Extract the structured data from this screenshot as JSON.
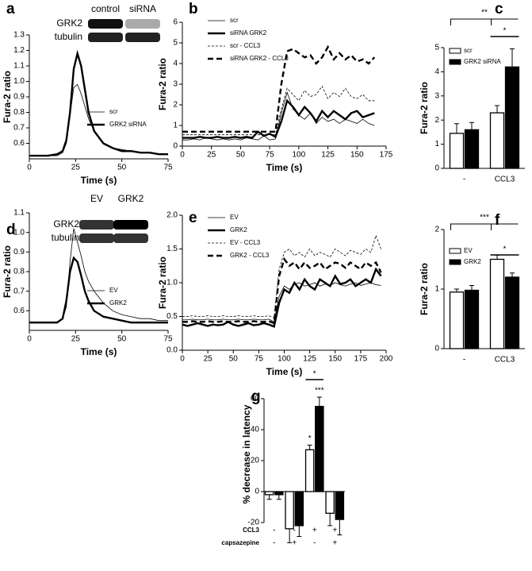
{
  "chart_data": [
    {
      "type": "line",
      "label": "a",
      "xlabel": "Time (s)",
      "ylabel": "Fura-2 ratio",
      "blot": {
        "lanes": [
          "control",
          "siRNA"
        ],
        "rows": [
          "GRK2",
          "tubulin"
        ]
      },
      "x": [
        0,
        5,
        10,
        15,
        18,
        20,
        22,
        24,
        26,
        28,
        30,
        32,
        35,
        40,
        45,
        50,
        55,
        60,
        65,
        70,
        75
      ],
      "xlim": [
        0,
        75
      ],
      "xticks": [
        0,
        25,
        50,
        75
      ],
      "ylim": [
        0.5,
        1.3
      ],
      "yticks": [
        0.6,
        0.7,
        0.8,
        0.9,
        {
          "value": 1,
          "label": "1.0"
        },
        1.1,
        1.2,
        1.3
      ],
      "series": [
        {
          "name": "scr",
          "color": "#000000",
          "style": "thin",
          "dashed": false,
          "values": [
            0.52,
            0.52,
            0.52,
            0.52,
            0.54,
            0.6,
            0.78,
            0.96,
            0.98,
            0.92,
            0.84,
            0.76,
            0.68,
            0.6,
            0.57,
            0.56,
            0.55,
            0.54,
            0.54,
            0.53,
            0.53
          ]
        },
        {
          "name": "GRK2 siRNA",
          "color": "#000000",
          "style": "thick",
          "dashed": false,
          "values": [
            0.52,
            0.52,
            0.52,
            0.53,
            0.55,
            0.62,
            0.8,
            1.08,
            1.18,
            1.1,
            0.95,
            0.8,
            0.68,
            0.6,
            0.57,
            0.55,
            0.55,
            0.54,
            0.54,
            0.53,
            0.53
          ]
        }
      ]
    },
    {
      "type": "line",
      "label": "b",
      "xlabel": "Time (s)",
      "ylabel": "Fura-2 ratio",
      "x": [
        0,
        5,
        10,
        15,
        20,
        25,
        30,
        35,
        40,
        45,
        50,
        55,
        60,
        65,
        70,
        75,
        80,
        85,
        90,
        95,
        100,
        105,
        110,
        115,
        120,
        125,
        130,
        135,
        140,
        145,
        150,
        155,
        160,
        165
      ],
      "xlim": [
        0,
        175
      ],
      "xticks": [
        0,
        25,
        50,
        75,
        100,
        125,
        150,
        175
      ],
      "ylim": [
        0,
        6
      ],
      "yticks": [
        0,
        1,
        2,
        3,
        4,
        5,
        6
      ],
      "series": [
        {
          "name": "scr",
          "color": "#000000",
          "style": "thin",
          "dashed": false,
          "values": [
            0.3,
            0.3,
            0.35,
            0.3,
            0.4,
            0.35,
            0.3,
            0.35,
            0.3,
            0.35,
            0.3,
            0.4,
            0.35,
            0.3,
            0.5,
            0.3,
            0.35,
            1.6,
            2.6,
            1.8,
            1.5,
            1.3,
            1.6,
            1.1,
            1.4,
            1.2,
            1.3,
            1.1,
            1.3,
            1.2,
            1.1,
            1.3,
            1.1,
            1.0
          ]
        },
        {
          "name": "siRNA GRK2",
          "color": "#000000",
          "style": "thick",
          "dashed": false,
          "values": [
            0.4,
            0.4,
            0.4,
            0.45,
            0.4,
            0.4,
            0.45,
            0.4,
            0.4,
            0.45,
            0.4,
            0.45,
            0.4,
            0.7,
            0.5,
            0.6,
            0.45,
            1.2,
            2.2,
            1.9,
            1.5,
            1.9,
            1.6,
            1.2,
            1.7,
            1.4,
            1.7,
            1.5,
            1.3,
            1.6,
            1.7,
            1.4,
            1.5,
            1.6
          ]
        },
        {
          "name": "scr - CCL3",
          "color": "#000000",
          "style": "thin",
          "dashed": true,
          "values": [
            0.55,
            0.55,
            0.55,
            0.55,
            0.55,
            0.55,
            0.55,
            0.55,
            0.55,
            0.55,
            0.55,
            0.55,
            0.55,
            0.55,
            0.55,
            0.55,
            0.55,
            1.8,
            2.8,
            2.5,
            2.2,
            2.7,
            2.4,
            2.5,
            2.9,
            2.3,
            2.6,
            2.4,
            2.8,
            2.4,
            2.3,
            2.5,
            2.2,
            2.2
          ]
        },
        {
          "name": "siRNA GRK2 - CCL3",
          "color": "#000000",
          "style": "thick",
          "dashed": true,
          "values": [
            0.7,
            0.7,
            0.7,
            0.7,
            0.7,
            0.7,
            0.7,
            0.7,
            0.7,
            0.7,
            0.7,
            0.7,
            0.7,
            0.7,
            0.7,
            0.7,
            0.7,
            3.0,
            4.6,
            4.7,
            4.5,
            4.3,
            4.4,
            4.0,
            4.3,
            4.8,
            4.2,
            4.5,
            4.2,
            4.4,
            4.1,
            4.2,
            4.0,
            4.3
          ]
        }
      ]
    },
    {
      "type": "bar",
      "label": "c",
      "ylabel": "Fura-2 ratio",
      "categories": [
        "-",
        "CCL3"
      ],
      "ylim": [
        0,
        5
      ],
      "yticks": [
        0,
        1,
        2,
        3,
        4,
        5
      ],
      "significance": [
        "**",
        "*"
      ],
      "series": [
        {
          "name": "scr",
          "color": "#ffffff",
          "values": [
            1.45,
            2.3
          ],
          "errors": [
            0.4,
            0.3
          ]
        },
        {
          "name": "GRK2 siRNA",
          "color": "#000000",
          "values": [
            1.6,
            4.2
          ],
          "errors": [
            0.3,
            0.75
          ]
        }
      ]
    },
    {
      "type": "line",
      "label": "d",
      "xlabel": "Time (s)",
      "ylabel": "Fura-2 ratio",
      "blot": {
        "lanes": [
          "EV",
          "GRK2"
        ],
        "rows": [
          "GRK2",
          "tubulin"
        ]
      },
      "x": [
        0,
        5,
        10,
        15,
        18,
        20,
        22,
        24,
        26,
        28,
        30,
        32,
        35,
        40,
        45,
        50,
        55,
        60,
        65,
        70,
        75
      ],
      "xlim": [
        0,
        75
      ],
      "xticks": [
        0,
        25,
        50,
        75
      ],
      "ylim": [
        0.5,
        1.1
      ],
      "yticks": [
        0.6,
        0.7,
        0.8,
        0.9,
        {
          "value": 1,
          "label": "1.0"
        },
        1.1
      ],
      "series": [
        {
          "name": "EV",
          "color": "#000000",
          "style": "thin",
          "dashed": false,
          "values": [
            0.54,
            0.54,
            0.54,
            0.54,
            0.56,
            0.62,
            0.85,
            1.02,
            0.95,
            0.88,
            0.8,
            0.75,
            0.7,
            0.64,
            0.6,
            0.58,
            0.57,
            0.56,
            0.56,
            0.55,
            0.55
          ]
        },
        {
          "name": "GRK2",
          "color": "#000000",
          "style": "thick",
          "dashed": false,
          "values": [
            0.54,
            0.54,
            0.54,
            0.54,
            0.56,
            0.65,
            0.8,
            0.87,
            0.85,
            0.78,
            0.7,
            0.65,
            0.6,
            0.57,
            0.56,
            0.55,
            0.54,
            0.54,
            0.54,
            0.54,
            0.54
          ]
        }
      ]
    },
    {
      "type": "line",
      "label": "e",
      "xlabel": "Time (s)",
      "ylabel": "Fura-2 ratio",
      "x": [
        0,
        5,
        10,
        15,
        20,
        25,
        30,
        35,
        40,
        45,
        50,
        55,
        60,
        65,
        70,
        75,
        80,
        85,
        90,
        95,
        100,
        105,
        110,
        115,
        120,
        125,
        130,
        135,
        140,
        145,
        150,
        155,
        160,
        165,
        170,
        175,
        180,
        185,
        190,
        195
      ],
      "xlim": [
        0,
        200
      ],
      "xticks": [
        0,
        25,
        50,
        75,
        100,
        125,
        150,
        175,
        200
      ],
      "ylim": [
        0,
        2
      ],
      "yticks": [
        {
          "value": 0,
          "label": "0.0"
        },
        0.5,
        {
          "value": 1,
          "label": "1.0"
        },
        1.5,
        {
          "value": 2,
          "label": "2.0"
        }
      ],
      "series": [
        {
          "name": "EV",
          "color": "#000000",
          "style": "thin",
          "dashed": false,
          "values": [
            0.45,
            0.45,
            0.46,
            0.45,
            0.45,
            0.46,
            0.45,
            0.45,
            0.46,
            0.45,
            0.45,
            0.46,
            0.45,
            0.45,
            0.46,
            0.45,
            0.45,
            0.46,
            0.42,
            0.8,
            0.95,
            0.9,
            0.98,
            1.0,
            0.95,
            0.97,
            1.0,
            0.95,
            0.98,
            0.96,
            1.0,
            0.97,
            0.95,
            0.98,
            1.0,
            0.96,
            0.98,
            1.0,
            0.97,
            0.96
          ]
        },
        {
          "name": "GRK2",
          "color": "#000000",
          "style": "thick",
          "dashed": false,
          "values": [
            0.38,
            0.36,
            0.38,
            0.4,
            0.38,
            0.36,
            0.38,
            0.37,
            0.38,
            0.42,
            0.38,
            0.36,
            0.38,
            0.4,
            0.37,
            0.38,
            0.4,
            0.38,
            0.35,
            0.7,
            0.9,
            0.85,
            1.0,
            0.9,
            1.05,
            0.95,
            0.9,
            1.05,
            1.0,
            0.95,
            1.1,
            0.98,
            1.0,
            1.05,
            0.95,
            1.0,
            1.05,
            1.0,
            1.2,
            1.1
          ]
        },
        {
          "name": "EV - CCL3",
          "color": "#000000",
          "style": "thin",
          "dashed": true,
          "values": [
            0.5,
            0.5,
            0.51,
            0.5,
            0.5,
            0.51,
            0.5,
            0.5,
            0.51,
            0.5,
            0.5,
            0.51,
            0.5,
            0.5,
            0.51,
            0.5,
            0.5,
            0.51,
            0.48,
            1.2,
            1.45,
            1.5,
            1.4,
            1.45,
            1.38,
            1.5,
            1.4,
            1.45,
            1.42,
            1.38,
            1.5,
            1.45,
            1.4,
            1.48,
            1.45,
            1.42,
            1.5,
            1.45,
            1.7,
            1.5
          ]
        },
        {
          "name": "GRK2 - CCL3",
          "color": "#000000",
          "style": "thick",
          "dashed": true,
          "values": [
            0.42,
            0.42,
            0.43,
            0.42,
            0.42,
            0.43,
            0.42,
            0.42,
            0.43,
            0.42,
            0.42,
            0.43,
            0.42,
            0.42,
            0.43,
            0.42,
            0.42,
            0.43,
            0.4,
            1.1,
            1.35,
            1.25,
            1.3,
            1.2,
            1.3,
            1.22,
            1.25,
            1.3,
            1.2,
            1.25,
            1.3,
            1.28,
            1.22,
            1.3,
            1.25,
            1.2,
            1.3,
            1.25,
            1.3,
            1.15
          ]
        }
      ]
    },
    {
      "type": "bar",
      "label": "f",
      "ylabel": "Fura-2 ratio",
      "categories": [
        "-",
        "CCL3"
      ],
      "ylim": [
        0,
        2
      ],
      "yticks": [
        0,
        1,
        2
      ],
      "significance": [
        "***",
        "*"
      ],
      "series": [
        {
          "name": "EV",
          "color": "#ffffff",
          "values": [
            0.95,
            1.5
          ],
          "errors": [
            0.05,
            0.07
          ]
        },
        {
          "name": "GRK2",
          "color": "#000000",
          "values": [
            0.98,
            1.2
          ],
          "errors": [
            0.08,
            0.07
          ]
        }
      ]
    },
    {
      "type": "bar",
      "label": "g",
      "ylabel": "% decrease in latency",
      "categories": [
        null,
        null,
        null,
        null
      ],
      "ylim": [
        -20,
        60
      ],
      "yticks": [
        -20,
        0,
        20,
        40,
        60
      ],
      "significance": [
        "*",
        "***",
        "*"
      ],
      "conditions": [
        {
          "name": "CCL3",
          "signs": [
            "-",
            "-",
            "+",
            "+"
          ]
        },
        {
          "name": "capsazepine",
          "signs": [
            "-",
            "+",
            "-",
            "+"
          ]
        }
      ],
      "series": [
        {
          "name": null,
          "color": "#ffffff",
          "values": [
            -2,
            -24,
            27,
            -14
          ],
          "errors": [
            3,
            9,
            3,
            8
          ]
        },
        {
          "name": null,
          "color": "#000000",
          "values": [
            -2,
            -22,
            55,
            -18
          ],
          "errors": [
            3,
            7,
            6,
            10
          ]
        }
      ]
    }
  ]
}
